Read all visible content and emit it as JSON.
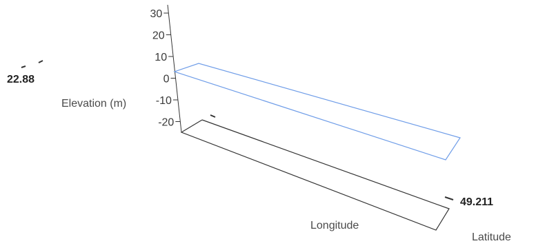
{
  "chart_data": {
    "type": "line",
    "style": "3d-surface-wireframe",
    "title": "",
    "axes": {
      "z": {
        "label": "Elevation (m)",
        "ticks": [
          30,
          20,
          10,
          0,
          -10,
          -20
        ],
        "tick_labels": [
          "30",
          "20",
          "10",
          "0",
          "-10",
          "-20"
        ]
      },
      "x": {
        "label": "Longitude"
      },
      "y": {
        "label": "Latitude"
      }
    },
    "corner_labels": {
      "longitude_value": "22.88",
      "latitude_value": "49.211"
    },
    "series": [
      {
        "elevation_m": 0,
        "color": "#6f9de8"
      }
    ],
    "colors": {
      "axis": "#333333",
      "surface": "#6f9de8"
    }
  }
}
